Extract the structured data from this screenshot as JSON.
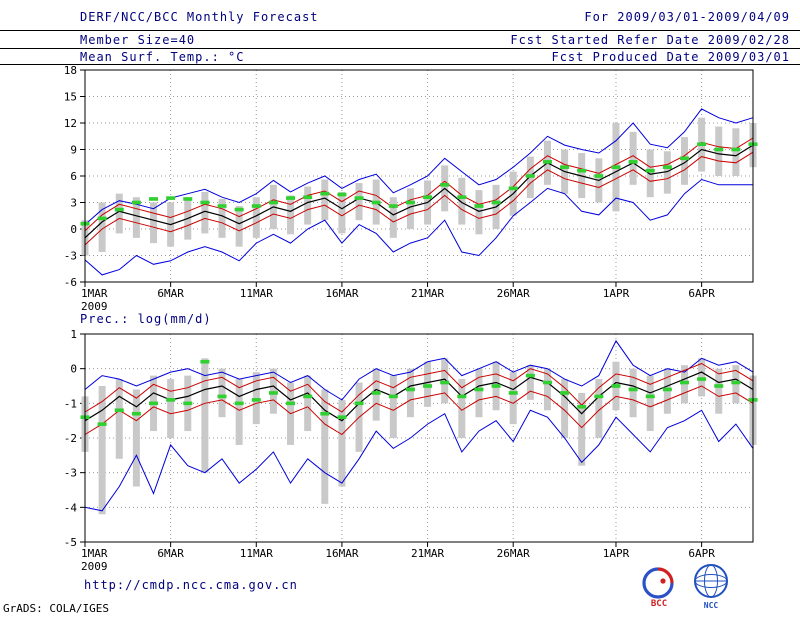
{
  "header": {
    "rows": [
      {
        "left": "DERF/NCC/BCC Monthly Forecast",
        "right": "For 2009/03/01-2009/04/09"
      },
      {
        "left": "Member Size=40",
        "right": "Fcst Started Refer Date 2009/02/28"
      },
      {
        "left": "Mean Surf. Temp.: °C",
        "right": "Fcst Produced Date 2009/03/01"
      }
    ]
  },
  "prec_label": "Prec.: log(mm/d)",
  "footer": {
    "url": "http://cmdp.ncc.cma.gov.cn",
    "credit": "GrADS: COLA/IGES",
    "logo_bcc_label": "BCC",
    "logo_ncc_label": "NCC"
  },
  "colors": {
    "header_text": "#00007d",
    "grid": "#9a9a9a",
    "frame": "#000000",
    "spread_bar": "#c9c9c9",
    "marker_green": "#2fd02f",
    "line_blue": "#0000dd",
    "line_red": "#cc0000",
    "line_black": "#000000"
  },
  "chart_data": [
    {
      "type": "line",
      "title": "Mean Surf. Temp.: °C",
      "xlabel": "",
      "ylabel": "°C",
      "ylim": [
        -6,
        18
      ],
      "yticks": [
        -6,
        -3,
        0,
        3,
        6,
        9,
        12,
        15,
        18
      ],
      "grid": true,
      "xticks": [
        {
          "label": "1MAR",
          "day": 0,
          "year": "2009"
        },
        {
          "label": "6MAR",
          "day": 5
        },
        {
          "label": "11MAR",
          "day": 10
        },
        {
          "label": "16MAR",
          "day": 15
        },
        {
          "label": "21MAR",
          "day": 20
        },
        {
          "label": "26MAR",
          "day": 25
        },
        {
          "label": "1APR",
          "day": 31
        },
        {
          "label": "6APR",
          "day": 36
        }
      ],
      "series": [
        {
          "name": "ensemble-max-blue",
          "color": "#0000dd",
          "width": 1,
          "values": [
            0.5,
            2.2,
            3.2,
            2.8,
            2.3,
            3.5,
            4.0,
            4.5,
            3.6,
            3.0,
            4.0,
            5.5,
            4.2,
            5.2,
            6.0,
            4.6,
            5.6,
            6.2,
            4.1,
            5.0,
            6.0,
            8.0,
            6.5,
            5.0,
            5.6,
            7.0,
            8.6,
            10.5,
            9.5,
            9.0,
            8.6,
            10.0,
            12.0,
            9.6,
            9.2,
            11.0,
            13.6,
            12.6,
            12.0,
            12.6
          ]
        },
        {
          "name": "upper-quartile-red",
          "color": "#cc0000",
          "width": 1,
          "values": [
            -0.2,
            1.6,
            2.8,
            2.3,
            1.8,
            1.3,
            2.0,
            2.8,
            2.3,
            1.4,
            2.3,
            3.3,
            2.8,
            3.8,
            4.3,
            3.1,
            4.3,
            3.8,
            2.4,
            3.3,
            3.8,
            5.4,
            3.8,
            2.8,
            3.3,
            4.8,
            6.8,
            8.3,
            7.3,
            6.8,
            6.3,
            7.3,
            8.3,
            7.0,
            7.3,
            8.3,
            9.8,
            9.3,
            9.1,
            10.3
          ]
        },
        {
          "name": "ensemble-mean-black",
          "color": "#000000",
          "width": 1.2,
          "values": [
            -1.0,
            0.8,
            2.0,
            1.5,
            1.0,
            0.5,
            1.2,
            2.0,
            1.5,
            0.6,
            1.5,
            2.5,
            2.0,
            3.0,
            3.5,
            2.3,
            3.5,
            3.0,
            1.6,
            2.5,
            3.0,
            4.6,
            3.0,
            2.0,
            2.5,
            4.0,
            6.0,
            7.5,
            6.5,
            6.0,
            5.5,
            6.5,
            7.5,
            6.2,
            6.5,
            7.5,
            9.0,
            8.5,
            8.3,
            9.5
          ]
        },
        {
          "name": "lower-quartile-red",
          "color": "#cc0000",
          "width": 1,
          "values": [
            -1.8,
            0.0,
            1.2,
            0.7,
            0.2,
            -0.3,
            0.4,
            1.2,
            0.7,
            -0.2,
            0.7,
            1.7,
            1.2,
            2.2,
            2.7,
            1.5,
            2.7,
            2.2,
            0.8,
            1.7,
            2.2,
            3.8,
            2.2,
            1.2,
            1.7,
            3.2,
            5.2,
            6.7,
            5.7,
            5.2,
            4.7,
            5.7,
            6.7,
            5.4,
            5.7,
            6.7,
            8.2,
            7.7,
            7.5,
            8.7
          ]
        },
        {
          "name": "ensemble-min-blue",
          "color": "#0000dd",
          "width": 1,
          "values": [
            -3.5,
            -5.2,
            -4.6,
            -3.0,
            -4.0,
            -3.6,
            -2.6,
            -2.0,
            -2.6,
            -3.6,
            -1.6,
            -0.6,
            -1.6,
            0.0,
            1.0,
            -1.6,
            0.5,
            -0.5,
            -2.6,
            -1.6,
            -1.0,
            1.0,
            -2.6,
            -3.0,
            -1.0,
            1.5,
            3.0,
            4.6,
            4.0,
            2.0,
            1.6,
            3.5,
            3.0,
            1.0,
            1.6,
            4.0,
            5.6,
            5.0,
            5.0,
            5.0
          ]
        }
      ],
      "spread_bars": {
        "color": "#c9c9c9",
        "low": [
          -3.0,
          -2.6,
          -0.5,
          -1.0,
          -1.6,
          -2.0,
          -1.2,
          -0.5,
          -1.0,
          -2.0,
          -1.0,
          0.0,
          -0.6,
          0.5,
          1.0,
          -0.5,
          1.0,
          0.5,
          -1.0,
          0.0,
          0.5,
          2.0,
          0.5,
          -0.6,
          0.0,
          1.5,
          3.5,
          5.0,
          4.0,
          3.5,
          3.0,
          2.0,
          5.0,
          3.6,
          4.0,
          5.0,
          6.5,
          6.0,
          6.0,
          7.0
        ],
        "high": [
          1.0,
          3.0,
          4.0,
          3.6,
          3.0,
          3.0,
          3.5,
          4.2,
          3.4,
          2.6,
          3.6,
          5.0,
          3.8,
          4.8,
          5.6,
          4.2,
          5.2,
          5.6,
          3.6,
          4.6,
          5.5,
          7.2,
          5.8,
          4.4,
          5.0,
          6.5,
          8.2,
          10.0,
          9.0,
          8.6,
          8.0,
          12.0,
          11.0,
          9.0,
          8.8,
          10.4,
          12.6,
          11.6,
          11.4,
          12.0
        ]
      },
      "markers": {
        "name": "green-dash-marker",
        "color": "#2fd02f",
        "values": [
          0.6,
          1.2,
          2.2,
          3.0,
          3.4,
          3.5,
          3.4,
          3.0,
          2.6,
          2.2,
          2.6,
          3.0,
          3.5,
          3.6,
          4.0,
          3.9,
          3.5,
          3.0,
          2.6,
          3.0,
          3.6,
          5.0,
          3.6,
          2.6,
          3.0,
          4.6,
          6.0,
          7.6,
          7.0,
          6.6,
          6.0,
          7.0,
          7.6,
          6.6,
          7.0,
          8.0,
          9.6,
          9.0,
          9.0,
          9.6
        ]
      }
    },
    {
      "type": "line",
      "title": "Prec.: log(mm/d)",
      "xlabel": "",
      "ylabel": "log(mm/d)",
      "ylim": [
        -5,
        1
      ],
      "yticks": [
        -5,
        -4,
        -3,
        -2,
        -1,
        0,
        1
      ],
      "grid": true,
      "xticks": [
        {
          "label": "1MAR",
          "day": 0,
          "year": "2009"
        },
        {
          "label": "6MAR",
          "day": 5
        },
        {
          "label": "11MAR",
          "day": 10
        },
        {
          "label": "16MAR",
          "day": 15
        },
        {
          "label": "21MAR",
          "day": 20
        },
        {
          "label": "26MAR",
          "day": 25
        },
        {
          "label": "1APR",
          "day": 31
        },
        {
          "label": "6APR",
          "day": 36
        }
      ],
      "series": [
        {
          "name": "ensemble-max-blue",
          "color": "#0000dd",
          "width": 1,
          "values": [
            -0.6,
            -0.2,
            -0.3,
            -0.5,
            -0.3,
            -0.1,
            0.0,
            -0.2,
            -0.1,
            -0.3,
            -0.2,
            -0.1,
            -0.4,
            -0.2,
            -0.6,
            -0.9,
            -0.3,
            0.0,
            -0.2,
            -0.1,
            0.2,
            0.3,
            -0.2,
            0.0,
            0.2,
            -0.1,
            0.1,
            0.0,
            -0.3,
            -0.5,
            -0.2,
            0.8,
            0.1,
            -0.2,
            0.0,
            -0.1,
            0.3,
            0.1,
            0.2,
            -0.1
          ]
        },
        {
          "name": "upper-quartile-red",
          "color": "#cc0000",
          "width": 1,
          "values": [
            -1.25,
            -0.95,
            -0.55,
            -0.85,
            -0.45,
            -0.65,
            -0.55,
            -0.35,
            -0.25,
            -0.55,
            -0.35,
            -0.25,
            -0.65,
            -0.45,
            -0.95,
            -1.25,
            -0.75,
            -0.35,
            -0.55,
            -0.25,
            -0.15,
            -0.05,
            -0.55,
            -0.25,
            -0.15,
            -0.35,
            0.0,
            -0.15,
            -0.55,
            -1.05,
            -0.55,
            -0.15,
            -0.25,
            -0.45,
            -0.25,
            -0.05,
            0.15,
            -0.15,
            -0.05,
            -0.35
          ]
        },
        {
          "name": "ensemble-mean-black",
          "color": "#000000",
          "width": 1.2,
          "values": [
            -1.5,
            -1.2,
            -0.8,
            -1.1,
            -0.7,
            -0.9,
            -0.8,
            -0.6,
            -0.5,
            -0.8,
            -0.6,
            -0.5,
            -0.9,
            -0.7,
            -1.2,
            -1.5,
            -1.0,
            -0.6,
            -0.8,
            -0.5,
            -0.4,
            -0.3,
            -0.8,
            -0.5,
            -0.4,
            -0.6,
            -0.25,
            -0.4,
            -0.8,
            -1.3,
            -0.8,
            -0.4,
            -0.5,
            -0.7,
            -0.5,
            -0.3,
            -0.1,
            -0.4,
            -0.3,
            -0.6
          ]
        },
        {
          "name": "lower-quartile-red",
          "color": "#cc0000",
          "width": 1,
          "values": [
            -1.9,
            -1.6,
            -1.2,
            -1.5,
            -1.1,
            -1.3,
            -1.2,
            -1.0,
            -0.9,
            -1.2,
            -1.0,
            -0.9,
            -1.3,
            -1.1,
            -1.6,
            -1.9,
            -1.4,
            -1.0,
            -1.2,
            -0.9,
            -0.8,
            -0.7,
            -1.2,
            -0.9,
            -0.8,
            -1.0,
            -0.65,
            -0.8,
            -1.2,
            -1.7,
            -1.2,
            -0.8,
            -0.9,
            -1.1,
            -0.9,
            -0.7,
            -0.5,
            -0.8,
            -0.7,
            -1.0
          ]
        },
        {
          "name": "ensemble-min-blue",
          "color": "#0000dd",
          "width": 1,
          "values": [
            -4.0,
            -4.1,
            -3.4,
            -2.5,
            -3.6,
            -2.2,
            -2.8,
            -3.0,
            -2.6,
            -3.3,
            -2.9,
            -2.4,
            -3.3,
            -2.6,
            -3.0,
            -3.3,
            -2.6,
            -1.8,
            -2.3,
            -2.0,
            -1.6,
            -1.3,
            -2.4,
            -1.8,
            -1.5,
            -2.1,
            -1.2,
            -1.4,
            -2.0,
            -2.7,
            -2.2,
            -1.4,
            -1.9,
            -2.4,
            -1.7,
            -1.5,
            -1.2,
            -2.1,
            -1.6,
            -2.3
          ]
        }
      ],
      "spread_bars": {
        "color": "#c9c9c9",
        "low": [
          -2.4,
          -4.2,
          -2.6,
          -3.4,
          -1.8,
          -2.0,
          -1.8,
          -3.0,
          -1.4,
          -2.2,
          -1.6,
          -1.3,
          -2.2,
          -1.8,
          -3.9,
          -3.4,
          -2.4,
          -1.5,
          -2.0,
          -1.4,
          -1.1,
          -1.0,
          -2.0,
          -1.4,
          -1.2,
          -1.6,
          -0.9,
          -1.2,
          -2.0,
          -2.8,
          -2.0,
          -1.2,
          -1.4,
          -1.8,
          -1.3,
          -1.0,
          -0.8,
          -1.3,
          -1.0,
          -2.2
        ],
        "high": [
          -0.8,
          -0.5,
          -0.3,
          -0.6,
          -0.2,
          -0.3,
          -0.2,
          0.3,
          0.0,
          -0.3,
          -0.1,
          0.0,
          -0.4,
          -0.2,
          -0.6,
          -0.9,
          -0.4,
          0.0,
          -0.2,
          0.0,
          0.2,
          0.3,
          -0.3,
          0.0,
          0.2,
          -0.1,
          0.1,
          0.0,
          -0.3,
          -0.7,
          -0.3,
          0.2,
          0.0,
          -0.2,
          0.0,
          0.1,
          0.3,
          0.0,
          0.1,
          -0.2
        ]
      },
      "markers": {
        "name": "green-dash-marker",
        "color": "#2fd02f",
        "values": [
          -1.4,
          -1.6,
          -1.2,
          -1.3,
          -1.0,
          -0.9,
          -1.0,
          0.2,
          -0.8,
          -1.0,
          -0.9,
          -0.7,
          -1.0,
          -0.8,
          -1.3,
          -1.4,
          -1.0,
          -0.7,
          -0.8,
          -0.6,
          -0.5,
          -0.4,
          -0.8,
          -0.6,
          -0.5,
          -0.7,
          -0.2,
          -0.4,
          -0.7,
          -1.1,
          -0.8,
          -0.5,
          -0.6,
          -0.8,
          -0.6,
          -0.4,
          -0.3,
          -0.5,
          -0.4,
          -0.9
        ]
      }
    }
  ]
}
